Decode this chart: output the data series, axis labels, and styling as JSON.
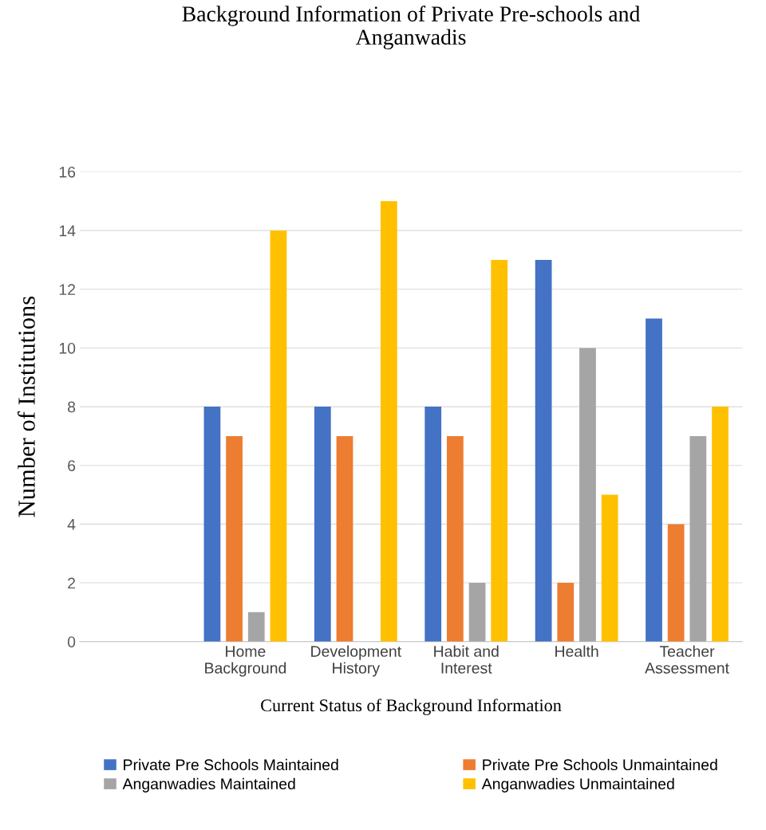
{
  "chart_data": {
    "type": "bar",
    "title": "Background Information of Private Pre-schools and\nAnganwadis",
    "xlabel": "Current Status of Background Information",
    "ylabel": "Number of Institutions",
    "categories": [
      null,
      "Home\nBackground",
      "Development\nHistory",
      "Habit and\nInterest",
      "Health",
      "Teacher\nAssessment"
    ],
    "series": [
      {
        "name": "Private Pre Schools Maintained",
        "color": "#4472c4",
        "values": [
          null,
          8,
          8,
          8,
          13,
          11
        ]
      },
      {
        "name": "Private Pre Schools Unmaintained",
        "color": "#ed7d31",
        "values": [
          null,
          7,
          7,
          7,
          2,
          4
        ]
      },
      {
        "name": "Anganwadies Maintained",
        "color": "#a5a5a5",
        "values": [
          null,
          1,
          0,
          2,
          10,
          7
        ]
      },
      {
        "name": "Anganwadies Unmaintained",
        "color": "#ffc000",
        "values": [
          null,
          14,
          15,
          13,
          5,
          8
        ]
      }
    ],
    "ylim": [
      0,
      16
    ],
    "yticks": [
      0,
      2,
      4,
      6,
      8,
      10,
      12,
      14,
      16
    ],
    "grid": "y",
    "legend": "bottom"
  }
}
